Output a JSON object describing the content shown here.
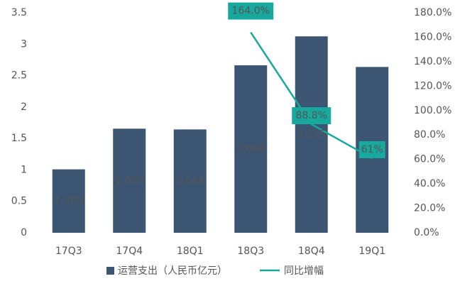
{
  "chart_data": {
    "type": "bar",
    "categories": [
      "17Q3",
      "17Q4",
      "18Q1",
      "18Q3",
      "18Q4",
      "19Q1"
    ],
    "series": [
      {
        "name": "运营支出（人民币亿元）",
        "color": "#3b5573",
        "values": [
          1.009,
          1.656,
          1.644,
          2.664,
          3.125,
          2.638
        ]
      },
      {
        "name": "同比增幅",
        "type": "line",
        "axis": "y2",
        "color": "#17a89e",
        "values": [
          null,
          null,
          null,
          164.0,
          88.8,
          61
        ],
        "value_labels": [
          null,
          null,
          null,
          "164.0%",
          "88.8%",
          "61%"
        ]
      }
    ],
    "ylim": [
      0,
      3.5
    ],
    "yticks": [
      0,
      0.5,
      1,
      1.5,
      2,
      2.5,
      3,
      3.5
    ],
    "y2lim": [
      0,
      180
    ],
    "y2ticks": [
      {
        "value": 0,
        "label": "0.0%"
      },
      {
        "value": 20,
        "label": "20.0%"
      },
      {
        "value": 40,
        "label": "40.0%"
      },
      {
        "value": 60,
        "label": "60.0%"
      },
      {
        "value": 80,
        "label": "80.0%"
      },
      {
        "value": 100,
        "label": "100.0%"
      },
      {
        "value": 120,
        "label": "120.0%"
      },
      {
        "value": 140,
        "label": "140.0%"
      },
      {
        "value": 160,
        "label": "160.0%"
      },
      {
        "value": 180,
        "label": "180.0%"
      }
    ],
    "legend": "bottom"
  }
}
